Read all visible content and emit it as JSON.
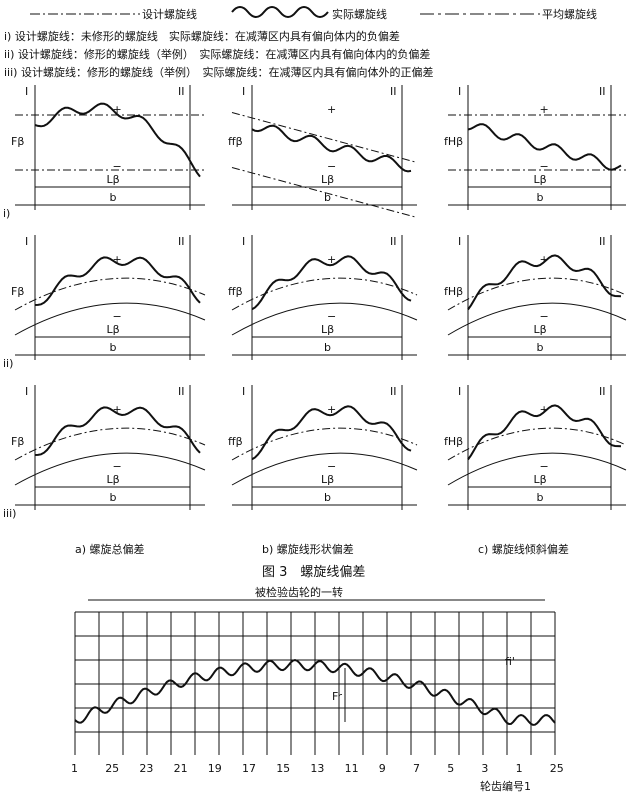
{
  "legend": {
    "design": "设计螺旋线",
    "actual": "实际螺旋线",
    "mean": "平均螺旋线"
  },
  "notes": [
    "i) 设计螺旋线：未修形的螺旋线　实际螺旋线：在减薄区内具有偏向体内的负偏差",
    "ii) 设计螺旋线：修形的螺旋线（举例）　实际螺旋线：在减薄区内具有偏向体内的负偏差",
    "iii) 设计螺旋线：修形的螺旋线（举例）　实际螺旋线：在减薄区内具有偏向体外的正偏差"
  ],
  "panel_labels": {
    "left": "I",
    "right": "II",
    "plus": "+",
    "minus": "−",
    "length": "Lβ",
    "width": "b"
  },
  "rows": [
    "i)",
    "ii)",
    "iii)"
  ],
  "symbols": [
    "Fβ",
    "ffβ",
    "fHβ"
  ],
  "captions": [
    "a) 螺旋总偏差",
    "b) 螺旋线形状偏差",
    "c) 螺旋线倾斜偏差"
  ],
  "figure_title": "图 3　螺旋线偏差",
  "bottom": {
    "title": "被检验齿轮的一转",
    "total": "Fr",
    "single": "fi'",
    "teeth": [
      "1",
      "25",
      "23",
      "21",
      "19",
      "17",
      "15",
      "13",
      "11",
      "9",
      "7",
      "5",
      "3",
      "1",
      "25"
    ],
    "tooth_label": "轮齿编号1"
  }
}
